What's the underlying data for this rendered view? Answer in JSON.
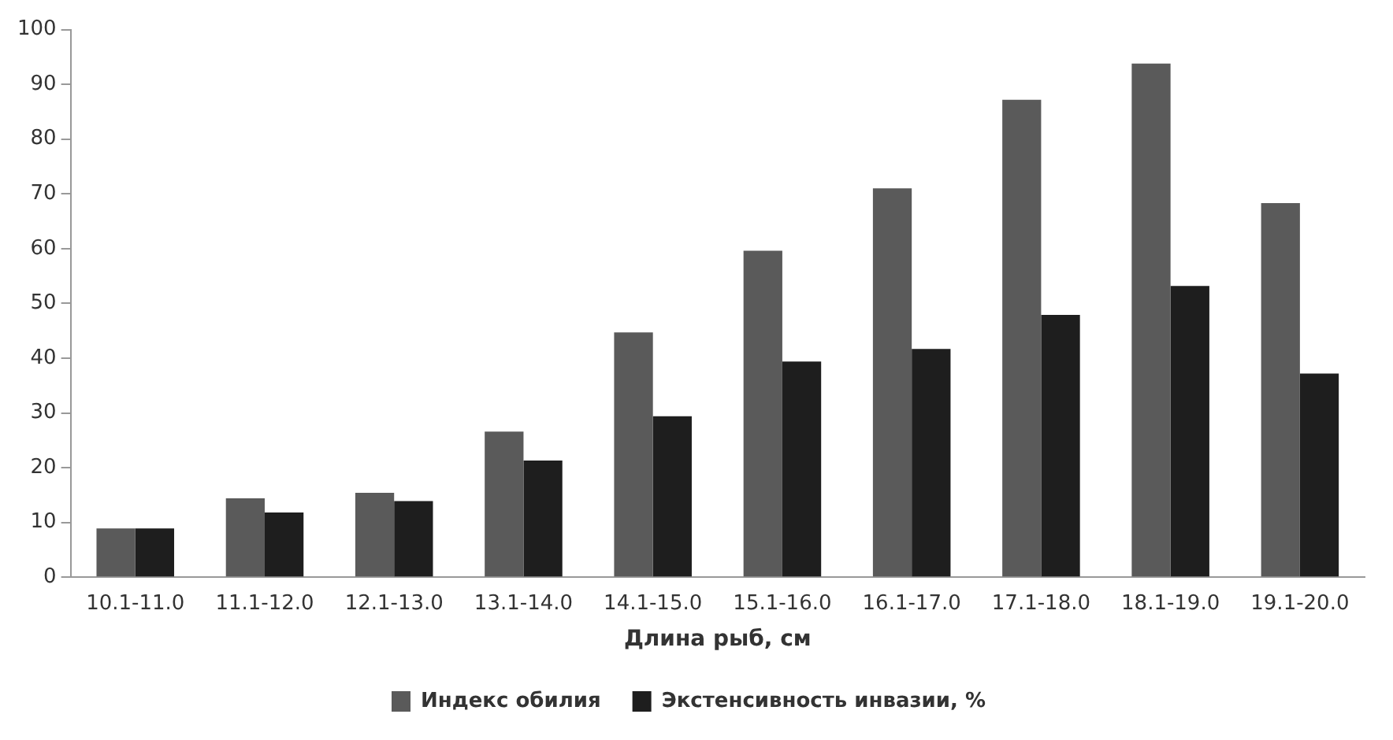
{
  "chart_data": {
    "type": "bar",
    "xlabel": "Длина рыб, см",
    "categories": [
      "10.1-11.0",
      "11.1-12.0",
      "12.1-13.0",
      "13.1-14.0",
      "14.1-15.0",
      "15.1-16.0",
      "16.1-17.0",
      "17.1-18.0",
      "18.1-19.0",
      "19.1-20.0"
    ],
    "series": [
      {
        "name": "Индекс обилия",
        "color": "#5a5a5a",
        "values": [
          8.9,
          14.4,
          15.4,
          26.6,
          44.7,
          59.6,
          71.0,
          87.2,
          93.8,
          68.3
        ]
      },
      {
        "name": "Экстенсивность инвазии, %",
        "color": "#1e1e1e",
        "values": [
          8.9,
          11.8,
          13.9,
          21.3,
          29.4,
          39.4,
          41.7,
          47.9,
          53.2,
          37.2
        ]
      }
    ],
    "ylim": [
      0,
      100
    ],
    "yticks": [
      0,
      10,
      20,
      30,
      40,
      50,
      60,
      70,
      80,
      90,
      100
    ],
    "grid": false,
    "legend": "bottom"
  }
}
